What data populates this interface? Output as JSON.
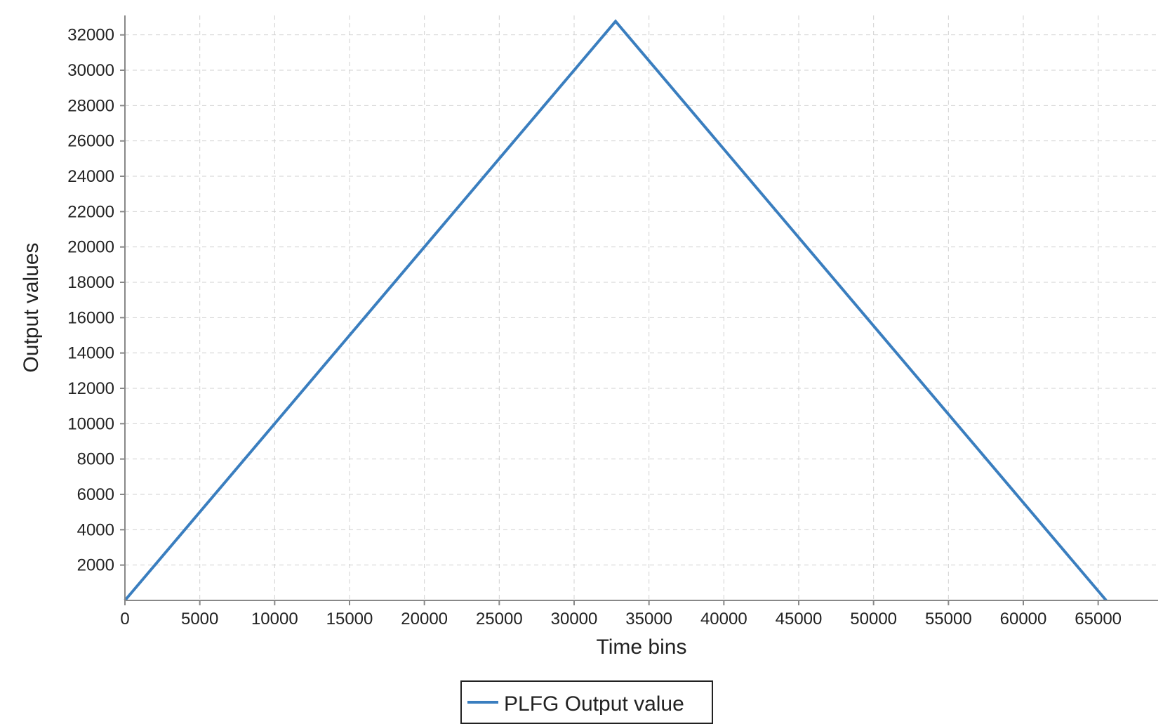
{
  "chart_data": {
    "type": "line",
    "title": "",
    "xlabel": "Time bins",
    "ylabel": "Output values",
    "xlim": [
      0,
      69000
    ],
    "ylim": [
      0,
      33100
    ],
    "xticks": [
      0,
      5000,
      10000,
      15000,
      20000,
      25000,
      30000,
      35000,
      40000,
      45000,
      50000,
      55000,
      60000,
      65000
    ],
    "yticks": [
      2000,
      4000,
      6000,
      8000,
      10000,
      12000,
      14000,
      16000,
      18000,
      20000,
      22000,
      24000,
      26000,
      28000,
      30000,
      32000
    ],
    "grid": true,
    "legend_position": "bottom-center",
    "series": [
      {
        "name": "PLFG Output value",
        "color": "#3a7ebf",
        "x": [
          0,
          32768,
          65535
        ],
        "y": [
          0,
          32767,
          0
        ]
      }
    ]
  }
}
